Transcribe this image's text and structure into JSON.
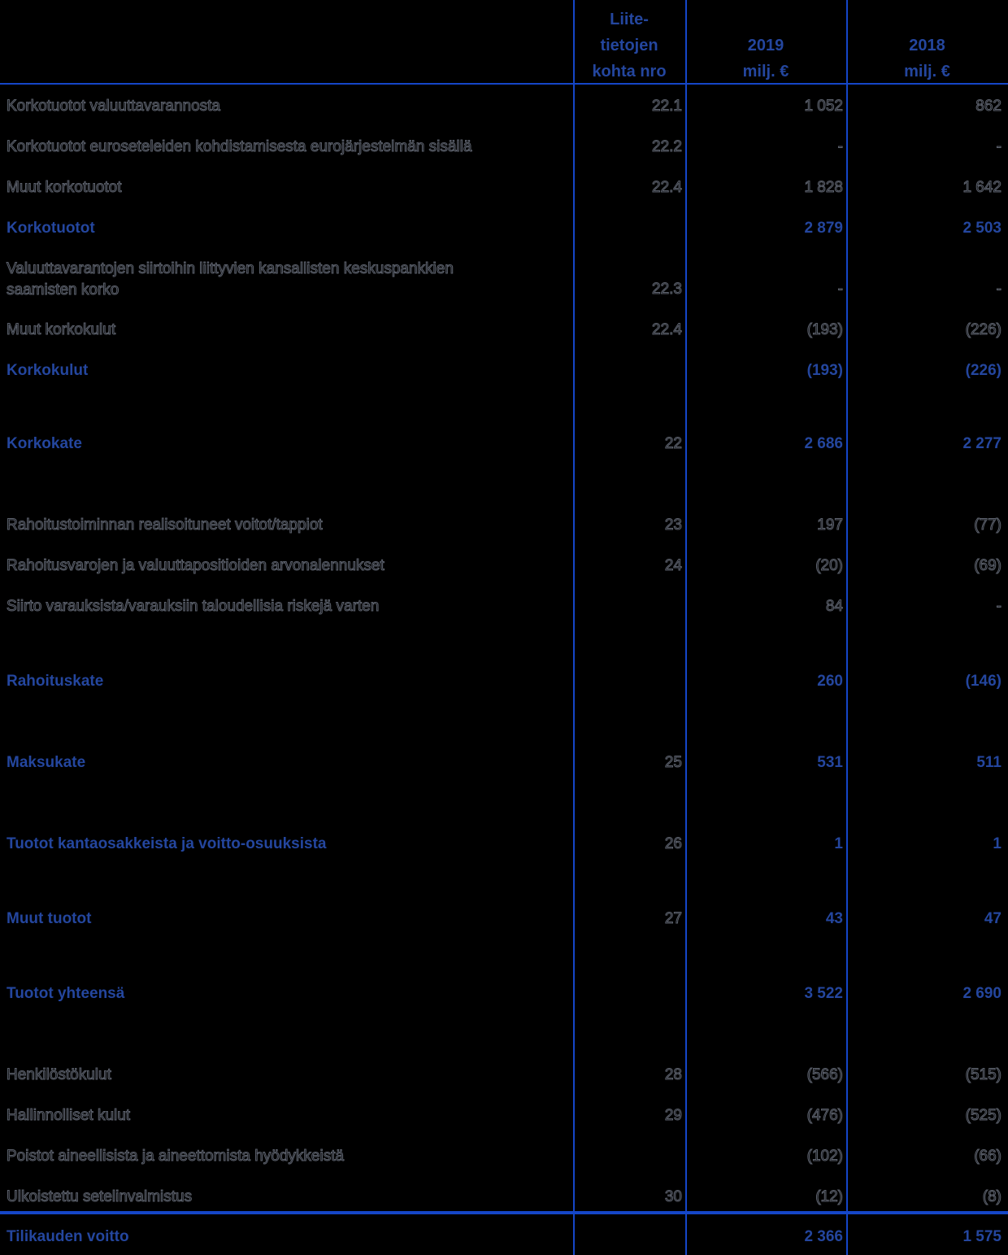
{
  "table": {
    "header": {
      "note_col": [
        "Liite-",
        "tietojen",
        "kohta nro"
      ],
      "col_2019": [
        "2019",
        "milj. €"
      ],
      "col_2018": [
        "2018",
        "milj. €"
      ]
    },
    "rows": [
      {
        "label": "Korkotuotot valuuttavarannosta",
        "note": "22.1",
        "v2019": "1 052",
        "v2018": "862",
        "bold": false
      },
      {
        "label": "Korkotuotot euroseteleiden kohdistamisesta eurojärjestelmän sisällä",
        "note": "22.2",
        "v2019": "-",
        "v2018": "-",
        "bold": false
      },
      {
        "label": "Muut korkotuotot",
        "note": "22.4",
        "v2019": "1 828",
        "v2018": "1 642",
        "bold": false
      },
      {
        "label": "Korkotuotot",
        "note": "",
        "v2019": "2 879",
        "v2018": "2 503",
        "bold": true
      },
      {
        "label": "Valuuttavarantojen siirtoihin liittyvien kansallisten keskuspankkien",
        "label2": "saamisten korko",
        "note": "22.3",
        "v2019": "-",
        "v2018": "-",
        "bold": false
      },
      {
        "label": "Muut korkokulut",
        "note": "22.4",
        "v2019": "(193)",
        "v2018": "(226)",
        "bold": false
      },
      {
        "label": "Korkokulut",
        "note": "",
        "v2019": "(193)",
        "v2018": "(226)",
        "bold": true
      },
      {
        "label": "Korkokate",
        "note": "22",
        "v2019": "2 686",
        "v2018": "2 277",
        "bold": true
      },
      {
        "label": "Rahoitustoiminnan realisoituneet voitot/tappiot",
        "note": "23",
        "v2019": "197",
        "v2018": "(77)",
        "bold": false
      },
      {
        "label": "Rahoitusvarojen ja valuuttapositioiden arvonalennukset",
        "note": "24",
        "v2019": "(20)",
        "v2018": "(69)",
        "bold": false
      },
      {
        "label": "Siirto varauksista/varauksiin taloudellisia riskejä varten",
        "note": "",
        "v2019": "84",
        "v2018": "-",
        "bold": false
      },
      {
        "label": "Rahoituskate",
        "note": "",
        "v2019": "260",
        "v2018": "(146)",
        "bold": true
      },
      {
        "label": "Maksukate",
        "note": "25",
        "v2019": "531",
        "v2018": "511",
        "bold": true
      },
      {
        "label": "Tuotot kantaosakkeista ja voitto-osuuksista",
        "note": "26",
        "v2019": "1",
        "v2018": "1",
        "bold": true
      },
      {
        "label": "Muut tuotot",
        "note": "27",
        "v2019": "43",
        "v2018": "47",
        "bold": true
      },
      {
        "label": "Tuotot yhteensä",
        "note": "",
        "v2019": "3 522",
        "v2018": "2 690",
        "bold": true
      },
      {
        "label": "Henkilöstökulut",
        "note": "28",
        "v2019": "(566)",
        "v2018": "(515)",
        "bold": false
      },
      {
        "label": "Hallinnolliset kulut",
        "note": "29",
        "v2019": "(476)",
        "v2018": "(525)",
        "bold": false
      },
      {
        "label": "Poistot aineellisista ja aineettomista hyödykkeistä",
        "note": "",
        "v2019": "(102)",
        "v2018": "(66)",
        "bold": false
      },
      {
        "label": "Ulkoistettu setelinvalmistus",
        "note": "30",
        "v2019": "(12)",
        "v2018": "(8)",
        "bold": false
      },
      {
        "label": "Tilikauden voitto",
        "note": "",
        "v2019": "2 366",
        "v2018": "1 575",
        "bold": true
      }
    ]
  },
  "colors": {
    "background": "#000000",
    "accent_text_blue": "#24469E",
    "grid_line_blue": "#1546C8",
    "regular_text_outline": "#5C616C"
  }
}
